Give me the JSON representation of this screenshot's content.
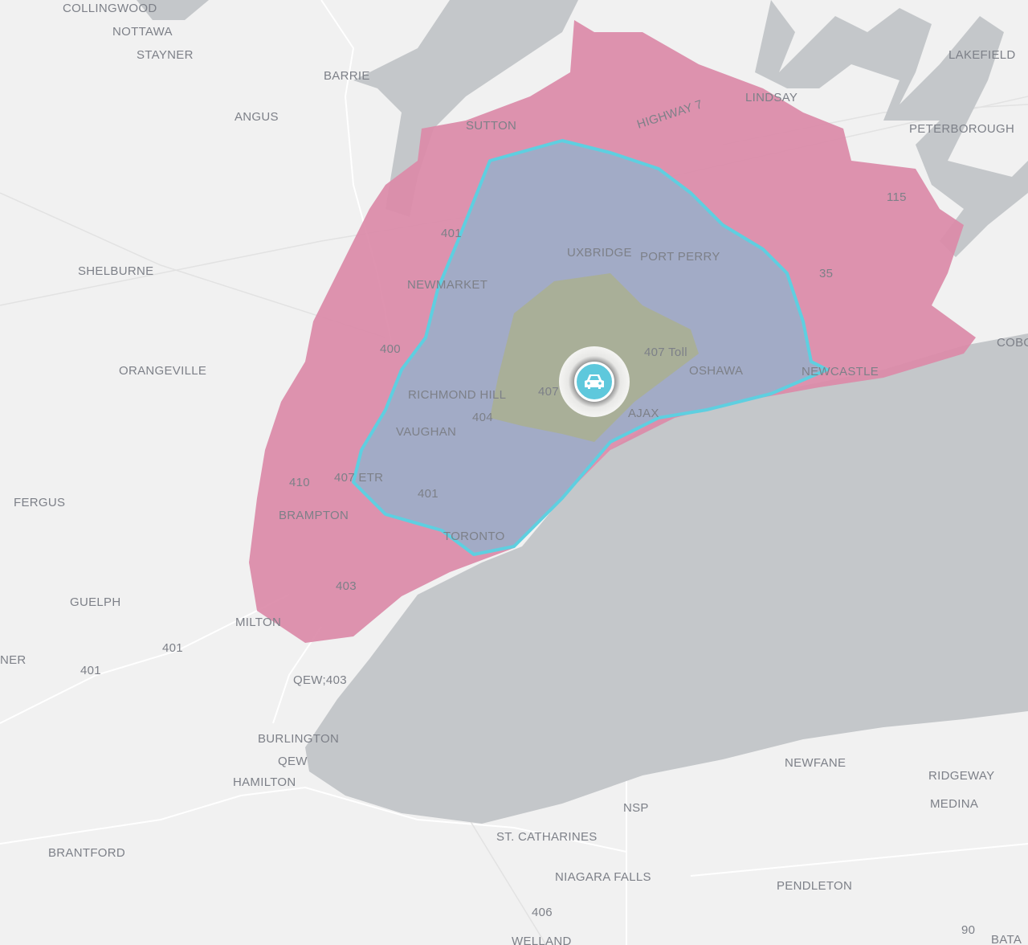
{
  "map": {
    "colors": {
      "land": "#f1f1f1",
      "water": "#c4c7ca",
      "zone_outer": "#db8aa8",
      "zone_middle": "#a2abc6",
      "zone_middle_border": "#5ecfe0",
      "zone_inner": "#a9af98",
      "marker": "#5ec8dc"
    },
    "marker_icon": "car-icon",
    "labels": [
      {
        "id": "collingwood",
        "text": "COLLINGWOOD"
      },
      {
        "id": "nottawa",
        "text": "NOTTAWA"
      },
      {
        "id": "stayner",
        "text": "STAYNER"
      },
      {
        "id": "barrie",
        "text": "BARRIE"
      },
      {
        "id": "angus",
        "text": "ANGUS"
      },
      {
        "id": "lakefield",
        "text": "LAKEFIELD"
      },
      {
        "id": "lindsay",
        "text": "LINDSAY"
      },
      {
        "id": "peterborough",
        "text": "PETERBOROUGH"
      },
      {
        "id": "sutton",
        "text": "SUTTON"
      },
      {
        "id": "highway7",
        "text": "HIGHWAY 7"
      },
      {
        "id": "shelburne",
        "text": "SHELBURNE"
      },
      {
        "id": "uxbridge",
        "text": "UXBRIDGE"
      },
      {
        "id": "portperry",
        "text": "PORT PERRY"
      },
      {
        "id": "newmarket",
        "text": "NEWMARKET"
      },
      {
        "id": "orangeville",
        "text": "ORANGEVILLE"
      },
      {
        "id": "richmondhill",
        "text": "RICHMOND HILL"
      },
      {
        "id": "oshawa",
        "text": "OSHAWA"
      },
      {
        "id": "newcastle",
        "text": "NEWCASTLE"
      },
      {
        "id": "cobourg",
        "text": "COBO"
      },
      {
        "id": "vaughan",
        "text": "VAUGHAN"
      },
      {
        "id": "ajax",
        "text": "AJAX"
      },
      {
        "id": "fergus",
        "text": "FERGUS"
      },
      {
        "id": "brampton",
        "text": "BRAMPTON"
      },
      {
        "id": "toronto",
        "text": "TORONTO"
      },
      {
        "id": "guelph",
        "text": "GUELPH"
      },
      {
        "id": "milton",
        "text": "MILTON"
      },
      {
        "id": "burlington",
        "text": "BURLINGTON"
      },
      {
        "id": "hamilton",
        "text": "HAMILTON"
      },
      {
        "id": "brantford",
        "text": "BRANTFORD"
      },
      {
        "id": "newfane",
        "text": "NEWFANE"
      },
      {
        "id": "ridgeway",
        "text": "RIDGEWAY"
      },
      {
        "id": "medina",
        "text": "MEDINA"
      },
      {
        "id": "stcatharines",
        "text": "ST. CATHARINES"
      },
      {
        "id": "niagarafalls",
        "text": "NIAGARA FALLS"
      },
      {
        "id": "pendleton",
        "text": "PENDLETON"
      },
      {
        "id": "welland",
        "text": "WELLAND"
      },
      {
        "id": "batavia",
        "text": "BATA"
      },
      {
        "id": "ner",
        "text": "NER"
      }
    ],
    "road_labels": [
      {
        "id": "r401a",
        "text": "401"
      },
      {
        "id": "r400",
        "text": "400"
      },
      {
        "id": "r407toll",
        "text": "407 Toll"
      },
      {
        "id": "r407",
        "text": "407"
      },
      {
        "id": "r404",
        "text": "404"
      },
      {
        "id": "r410",
        "text": "410"
      },
      {
        "id": "r407etr",
        "text": "407 ETR"
      },
      {
        "id": "r401b",
        "text": "401"
      },
      {
        "id": "r403",
        "text": "403"
      },
      {
        "id": "r401c",
        "text": "401"
      },
      {
        "id": "r401d",
        "text": "401"
      },
      {
        "id": "rqew403",
        "text": "QEW;403"
      },
      {
        "id": "rqew",
        "text": "QEW"
      },
      {
        "id": "rnsp",
        "text": "NSP"
      },
      {
        "id": "r406",
        "text": "406"
      },
      {
        "id": "r90",
        "text": "90"
      },
      {
        "id": "r115",
        "text": "115"
      },
      {
        "id": "r35",
        "text": "35"
      }
    ]
  }
}
